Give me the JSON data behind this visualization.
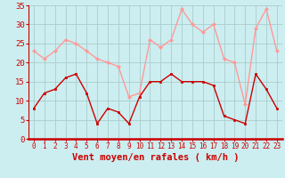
{
  "hours": [
    0,
    1,
    2,
    3,
    4,
    5,
    6,
    7,
    8,
    9,
    10,
    11,
    12,
    13,
    14,
    15,
    16,
    17,
    18,
    19,
    20,
    21,
    22,
    23
  ],
  "wind_mean": [
    8,
    12,
    13,
    16,
    17,
    12,
    4,
    8,
    7,
    4,
    11,
    15,
    15,
    17,
    15,
    15,
    15,
    14,
    6,
    5,
    4,
    17,
    13,
    8
  ],
  "wind_gust": [
    23,
    21,
    23,
    26,
    25,
    23,
    21,
    20,
    19,
    11,
    12,
    26,
    24,
    26,
    34,
    30,
    28,
    30,
    21,
    20,
    9,
    29,
    34,
    23
  ],
  "bg_color": "#cceef0",
  "grid_color": "#aacccc",
  "mean_color": "#cc0000",
  "gust_color": "#ff9999",
  "xlabel": "Vent moyen/en rafales ( km/h )",
  "xlabel_color": "#cc0000",
  "tick_color": "#cc0000",
  "spine_color": "#cc0000",
  "ylim": [
    0,
    35
  ],
  "yticks": [
    0,
    5,
    10,
    15,
    20,
    25,
    30,
    35
  ],
  "xlim": [
    -0.5,
    23.5
  ],
  "ytick_fontsize": 6.5,
  "xtick_fontsize": 5.5,
  "xlabel_fontsize": 7.5
}
